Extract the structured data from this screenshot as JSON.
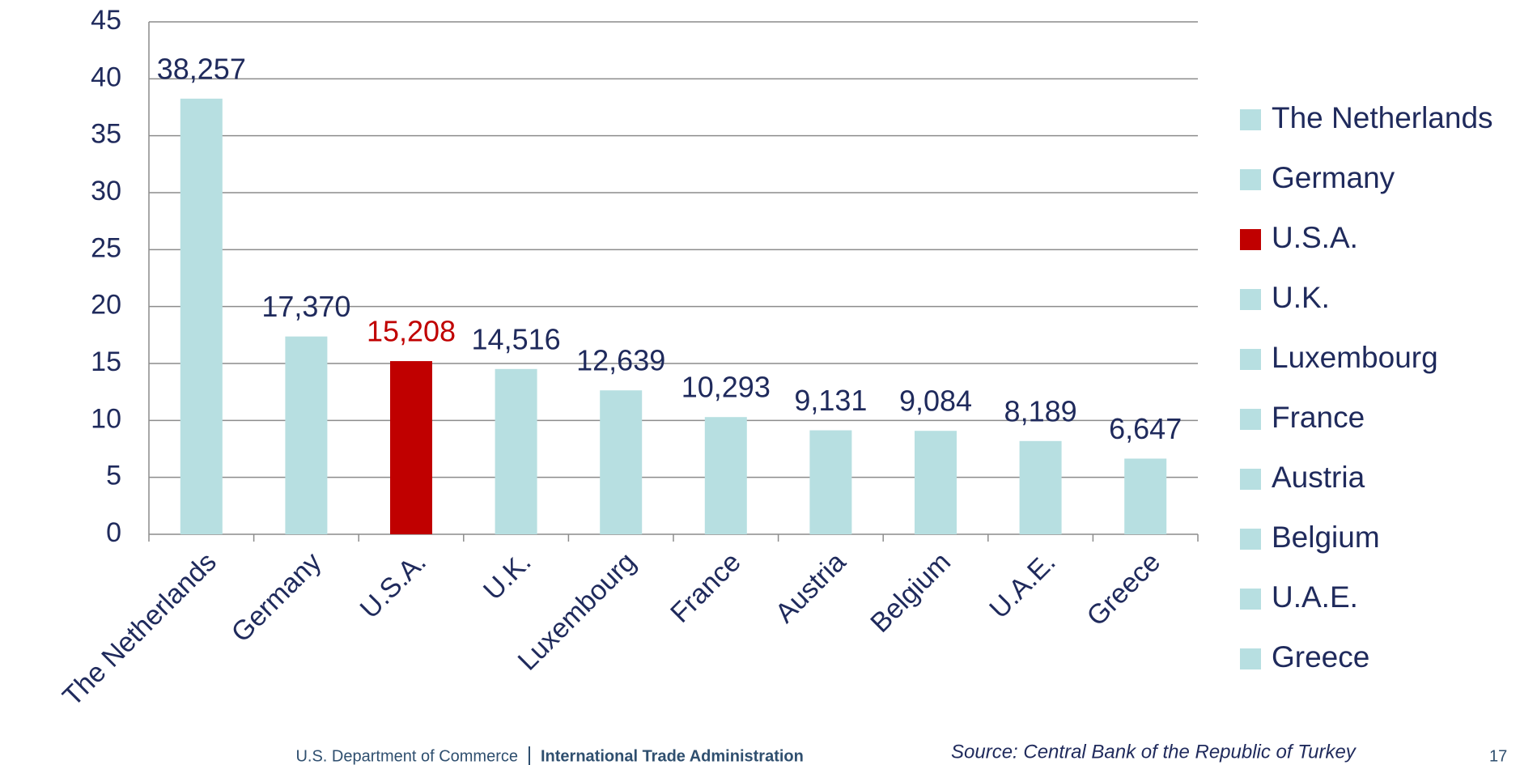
{
  "chart_data": {
    "type": "bar",
    "categories": [
      "The Netherlands",
      "Germany",
      "U.S.A.",
      "U.K.",
      "Luxembourg",
      "France",
      "Austria",
      "Belgium",
      "U.A.E.",
      "Greece"
    ],
    "values": [
      38.257,
      17.37,
      15.208,
      14.516,
      12.639,
      10.293,
      9.131,
      9.084,
      8.189,
      6.647
    ],
    "value_labels": [
      "38,257",
      "17,370",
      "15,208",
      "14,516",
      "12,639",
      "10,293",
      "9,131",
      "9,084",
      "8,189",
      "6,647"
    ],
    "colors": [
      "#b7dfe1",
      "#b7dfe1",
      "#c00000",
      "#b7dfe1",
      "#b7dfe1",
      "#b7dfe1",
      "#b7dfe1",
      "#b7dfe1",
      "#b7dfe1",
      "#b7dfe1"
    ],
    "ylim": [
      0,
      45
    ],
    "yticks": [
      0,
      5,
      10,
      15,
      20,
      25,
      30,
      35,
      40,
      45
    ],
    "grid": true,
    "legend": "right"
  },
  "footer": {
    "department": "U.S. Department of Commerce",
    "agency": "International Trade Administration",
    "source": "Source: Central Bank of the Republic of Turkey",
    "page": "17"
  }
}
